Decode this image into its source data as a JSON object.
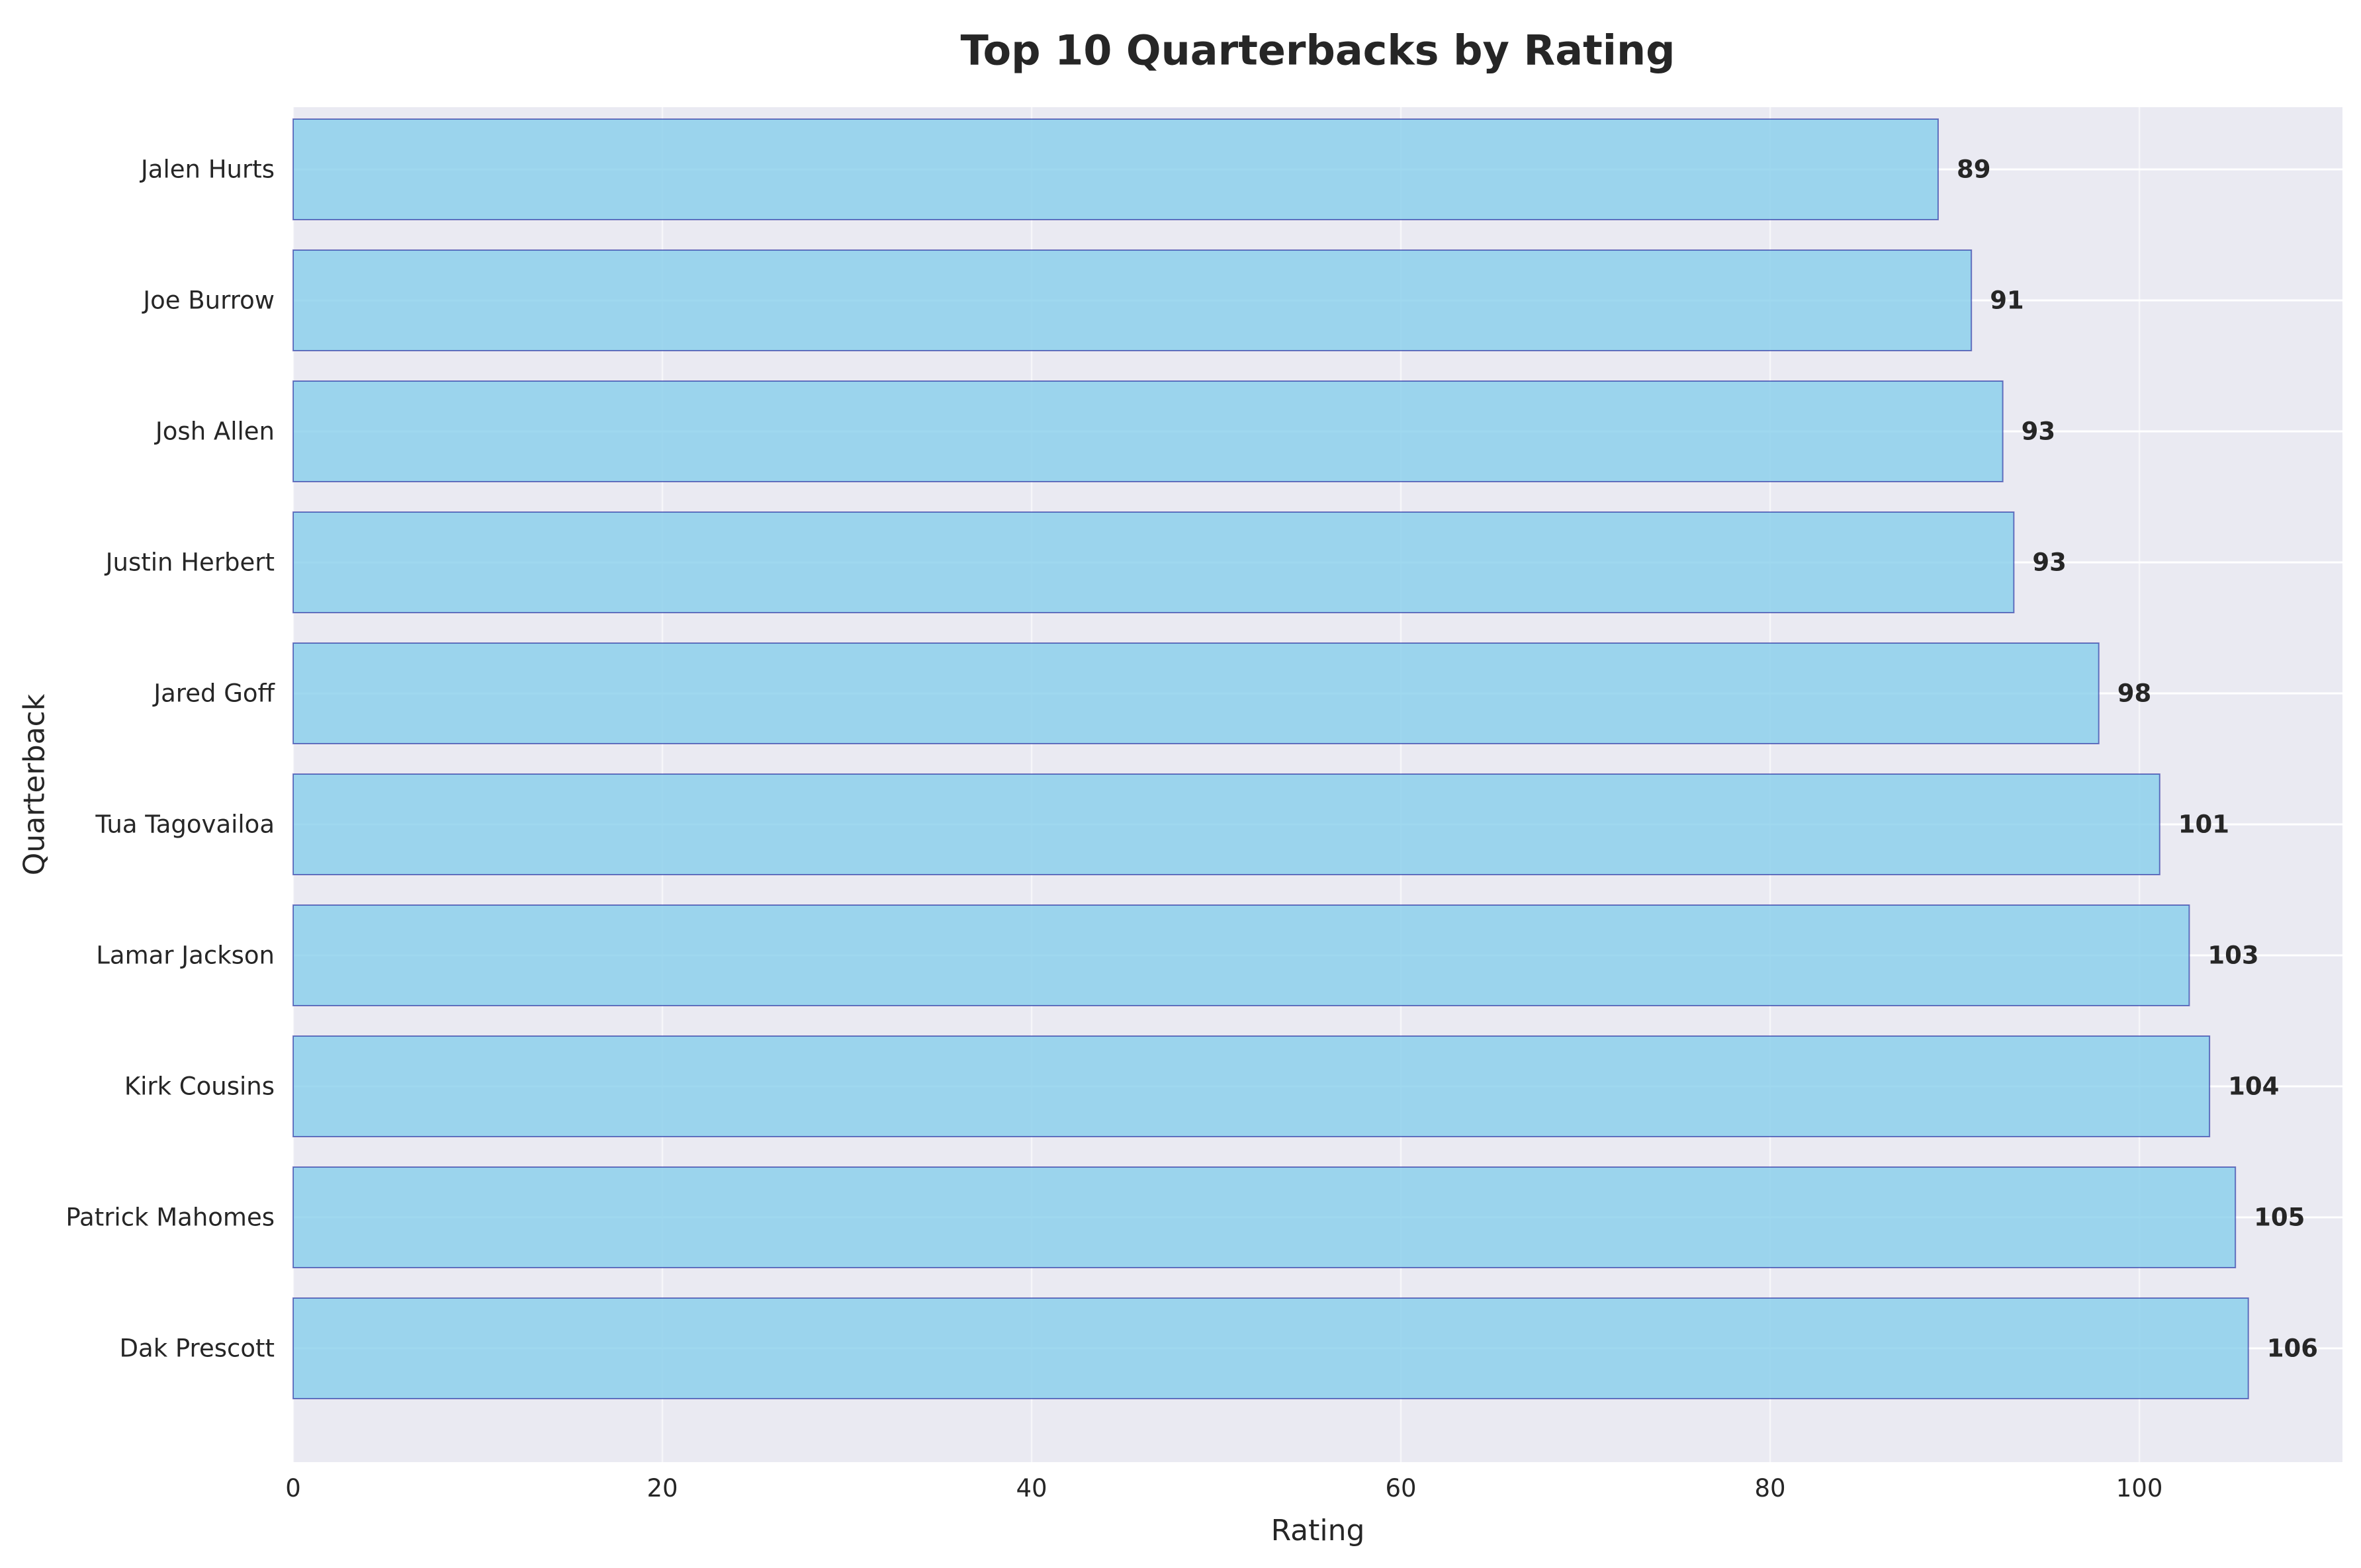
{
  "chart_data": {
    "type": "bar",
    "orientation": "horizontal",
    "title": "Top 10 Quarterbacks by Rating",
    "xlabel": "Rating",
    "ylabel": "Quarterback",
    "xlim": [
      0,
      111
    ],
    "xticks": [
      0,
      20,
      40,
      60,
      80,
      100
    ],
    "grid": true,
    "categories": [
      "Dak Prescott",
      "Patrick Mahomes",
      "Kirk Cousins",
      "Lamar Jackson",
      "Tua Tagovailoa",
      "Jared Goff",
      "Justin Herbert",
      "Josh Allen",
      "Joe Burrow",
      "Jalen Hurts"
    ],
    "values": [
      105.9,
      105.2,
      103.8,
      102.7,
      101.1,
      97.8,
      93.2,
      92.6,
      90.9,
      89.1
    ],
    "labels": [
      "106",
      "105",
      "104",
      "103",
      "101",
      "98",
      "93",
      "93",
      "91",
      "89"
    ],
    "colors": {
      "bar_fill": "#87ceeb",
      "bar_edge": "#00008b",
      "plot_background": "#eaeaf2",
      "grid": "#ffffff",
      "text": "#262626"
    }
  }
}
